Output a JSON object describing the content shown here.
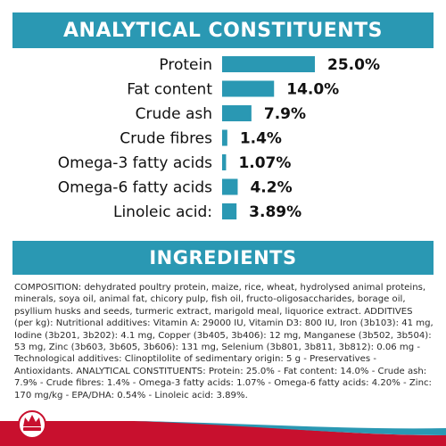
{
  "header": {
    "title": "ANALYTICAL CONSTITUENTS"
  },
  "ingredients": {
    "title": "INGREDIENTS",
    "text": "COMPOSITION: dehydrated poultry protein, maize, rice, wheat, hydrolysed animal proteins, minerals, soya oil, animal fat, chicory pulp, fish oil, fructo-oligosaccharides, borage oil, psyllium husks and seeds, turmeric extract, marigold meal, liquorice extract. ADDITIVES (per kg): Nutritional additives: Vitamin A: 29000 IU, Vitamin D3: 800 IU, Iron (3b103): 41 mg, Iodine (3b201, 3b202): 4.1 mg, Copper (3b405, 3b406): 12 mg, Manganese (3b502, 3b504): 53 mg, Zinc (3b603, 3b605, 3b606): 131 mg, Selenium (3b801, 3b811, 3b812): 0.06 mg - Technological additives: Clinoptilolite of sedimentary origin: 5 g - Preservatives - Antioxidants. ANALYTICAL CONSTITUENTS: Protein: 25.0% - Fat content: 14.0% - Crude ash: 7.9% - Crude fibres: 1.4% - Omega-3 fatty acids: 1.07% - Omega-6 fatty acids: 4.20% - Zinc: 170 mg/kg - EPA/DHA: 0.54% - Linoleic acid: 3.89%."
  },
  "colors": {
    "accent": "#2a98b3",
    "bar": "#2a98b3",
    "brand_red": "#c8102e",
    "wave": "#2a98b3"
  },
  "chart_data": {
    "type": "bar",
    "orientation": "horizontal",
    "categories": [
      "Protein",
      "Fat content",
      "Crude ash",
      "Crude fibres",
      "Omega-3 fatty acids",
      "Omega-6 fatty acids",
      "Linoleic acid:"
    ],
    "values": [
      25.0,
      14.0,
      7.9,
      1.4,
      1.07,
      4.2,
      3.89
    ],
    "value_labels": [
      "25.0%",
      "14.0%",
      "7.9%",
      "1.4%",
      "1.07%",
      "4.2%",
      "3.89%"
    ],
    "xlim": [
      0,
      25
    ],
    "grid": false,
    "legend": "none"
  },
  "footer": {
    "logo_icon": "royal-canin-crown-logo"
  }
}
